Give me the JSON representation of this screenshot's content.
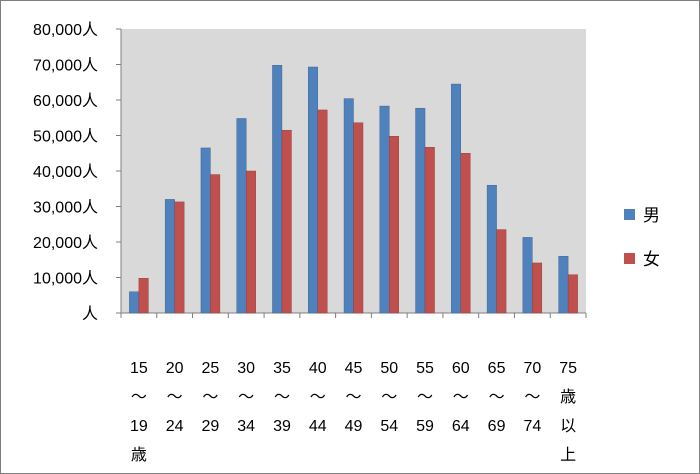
{
  "chart_data": {
    "type": "bar",
    "title": "",
    "xlabel": "",
    "ylabel": "",
    "ylim": [
      0,
      80000
    ],
    "y_unit": "人",
    "y_ticks": [
      "人",
      "10,000人",
      "20,000人",
      "30,000人",
      "40,000人",
      "50,000人",
      "60,000人",
      "70,000人",
      "80,000人"
    ],
    "grid": false,
    "plot_background": "#d9d9d9",
    "legend_position": "right",
    "categories": [
      [
        "15",
        "～",
        "19",
        "歳"
      ],
      [
        "20",
        "～",
        "24"
      ],
      [
        "25",
        "～",
        "29"
      ],
      [
        "30",
        "～",
        "34"
      ],
      [
        "35",
        "～",
        "39"
      ],
      [
        "40",
        "～",
        "44"
      ],
      [
        "45",
        "～",
        "49"
      ],
      [
        "50",
        "～",
        "54"
      ],
      [
        "55",
        "～",
        "59"
      ],
      [
        "60",
        "～",
        "64"
      ],
      [
        "65",
        "～",
        "69"
      ],
      [
        "70",
        "～",
        "74"
      ],
      [
        "75",
        "歳",
        "以",
        "上"
      ]
    ],
    "series": [
      {
        "name": "男",
        "color": "#4f81bd",
        "values": [
          6000,
          32000,
          46500,
          54800,
          69800,
          69300,
          60400,
          58300,
          57700,
          64500,
          36000,
          21300,
          16000
        ]
      },
      {
        "name": "女",
        "color": "#c0504d",
        "values": [
          9800,
          31300,
          39000,
          40000,
          51500,
          57200,
          53600,
          49800,
          46700,
          45000,
          23500,
          14100,
          10800
        ]
      }
    ]
  }
}
